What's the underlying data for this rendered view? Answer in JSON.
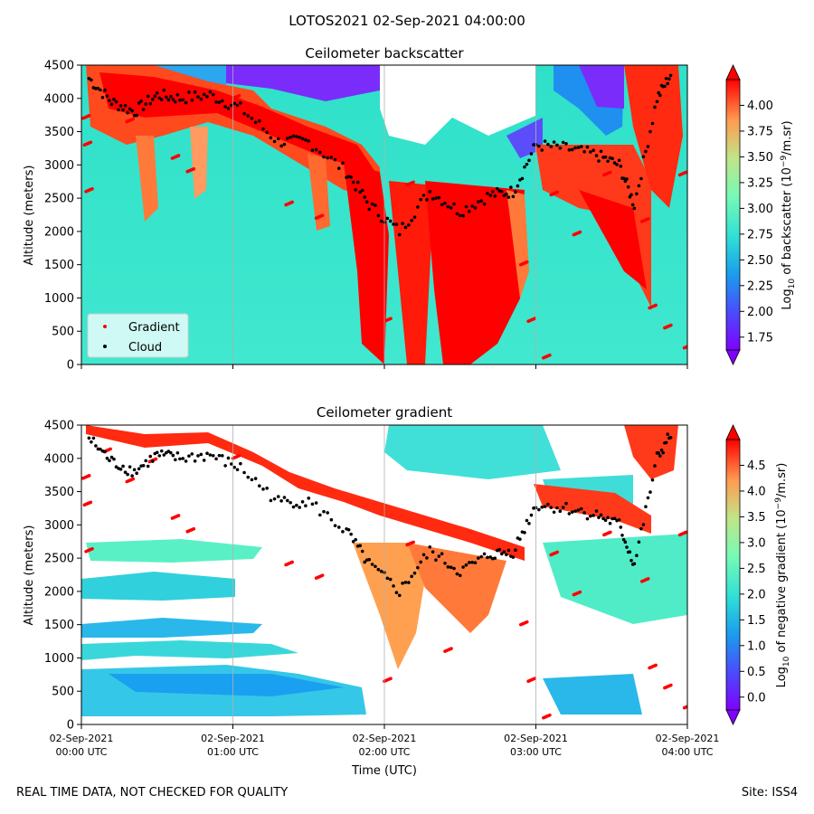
{
  "suptitle": "LOTOS2021 02-Sep-2021 04:00:00",
  "footer_left": "REAL TIME DATA, NOT CHECKED FOR QUALITY",
  "footer_right": "Site: ISS4",
  "chart_data": [
    {
      "type": "heatmap",
      "title": "Ceilometer backscatter",
      "ylabel": "Altitude (meters)",
      "xlabel": "",
      "ylim": [
        0,
        4500
      ],
      "yticks": [
        0,
        500,
        1000,
        1500,
        2000,
        2500,
        3000,
        3500,
        4000,
        4500
      ],
      "xlim_utc_hours": [
        0,
        4
      ],
      "colormap": "rainbow",
      "colorbar": {
        "label_prefix": "Log",
        "label_sub": "10",
        "label_mid": " of backscatter (10",
        "label_sup": "−9",
        "label_suffix": "/m.sr)",
        "range": [
          1.625,
          4.25
        ],
        "ticks": [
          "1.75",
          "2.00",
          "2.25",
          "2.50",
          "2.75",
          "3.00",
          "3.25",
          "3.50",
          "3.75",
          "4.00"
        ],
        "extend": "both"
      },
      "legend": {
        "placement": "lower-left",
        "entries": [
          {
            "name": "Gradient",
            "color": "#ff0000"
          },
          {
            "name": "Cloud",
            "color": "#000000"
          }
        ]
      },
      "cloud_base_points": [
        {
          "t": 0.05,
          "h": 4300
        },
        {
          "t": 0.2,
          "h": 3950
        },
        {
          "t": 0.35,
          "h": 3800
        },
        {
          "t": 0.5,
          "h": 4050
        },
        {
          "t": 0.65,
          "h": 4000
        },
        {
          "t": 0.85,
          "h": 4050
        },
        {
          "t": 1.05,
          "h": 3850
        },
        {
          "t": 1.3,
          "h": 3350
        },
        {
          "t": 1.5,
          "h": 3350
        },
        {
          "t": 1.75,
          "h": 2900
        },
        {
          "t": 1.9,
          "h": 2400
        },
        {
          "t": 2.1,
          "h": 2000
        },
        {
          "t": 2.3,
          "h": 2600
        },
        {
          "t": 2.5,
          "h": 2300
        },
        {
          "t": 2.7,
          "h": 2550
        },
        {
          "t": 2.85,
          "h": 2600
        },
        {
          "t": 3.0,
          "h": 3300
        },
        {
          "t": 3.2,
          "h": 3250
        },
        {
          "t": 3.4,
          "h": 3150
        },
        {
          "t": 3.55,
          "h": 3000
        },
        {
          "t": 3.65,
          "h": 2400
        },
        {
          "t": 3.8,
          "h": 4000
        },
        {
          "t": 3.9,
          "h": 4400
        }
      ],
      "gradient_points": [
        {
          "t": 0.01,
          "h": 3700
        },
        {
          "t": 0.02,
          "h": 3300
        },
        {
          "t": 0.03,
          "h": 2600
        },
        {
          "t": 0.15,
          "h": 4100
        },
        {
          "t": 0.3,
          "h": 3650
        },
        {
          "t": 0.45,
          "h": 3950
        },
        {
          "t": 0.6,
          "h": 3100
        },
        {
          "t": 0.7,
          "h": 2900
        },
        {
          "t": 1.0,
          "h": 4000
        },
        {
          "t": 1.35,
          "h": 2400
        },
        {
          "t": 1.55,
          "h": 2200
        },
        {
          "t": 2.0,
          "h": 650
        },
        {
          "t": 2.15,
          "h": 2700
        },
        {
          "t": 2.4,
          "h": 1100
        },
        {
          "t": 2.9,
          "h": 1500
        },
        {
          "t": 2.95,
          "h": 650
        },
        {
          "t": 3.05,
          "h": 100
        },
        {
          "t": 3.1,
          "h": 2550
        },
        {
          "t": 3.25,
          "h": 1950
        },
        {
          "t": 3.45,
          "h": 2850
        },
        {
          "t": 3.7,
          "h": 2150
        },
        {
          "t": 3.75,
          "h": 850
        },
        {
          "t": 3.85,
          "h": 550
        },
        {
          "t": 3.95,
          "h": 2850
        },
        {
          "t": 3.98,
          "h": 250
        }
      ]
    },
    {
      "type": "heatmap",
      "title": "Ceilometer gradient",
      "ylabel": "Altitude (meters)",
      "xlabel": "Time (UTC)",
      "ylim": [
        0,
        4500
      ],
      "yticks": [
        0,
        500,
        1000,
        1500,
        2000,
        2500,
        3000,
        3500,
        4000,
        4500
      ],
      "xlim_utc_hours": [
        0,
        4
      ],
      "xticks": [
        {
          "date": "02-Sep-2021",
          "time": "00:00 UTC"
        },
        {
          "date": "02-Sep-2021",
          "time": "01:00 UTC"
        },
        {
          "date": "02-Sep-2021",
          "time": "02:00 UTC"
        },
        {
          "date": "02-Sep-2021",
          "time": "03:00 UTC"
        },
        {
          "date": "02-Sep-2021",
          "time": "04:00 UTC"
        }
      ],
      "colormap": "rainbow",
      "colorbar": {
        "label_prefix": "Log",
        "label_sub": "10",
        "label_mid": " of negative gradient (10",
        "label_sup": "−9",
        "label_suffix": "/m.sr)",
        "range": [
          -0.25,
          5.0
        ],
        "ticks": [
          "0.0",
          "0.5",
          "1.0",
          "1.5",
          "2.0",
          "2.5",
          "3.0",
          "3.5",
          "4.0",
          "4.5"
        ],
        "extend": "both"
      }
    }
  ]
}
